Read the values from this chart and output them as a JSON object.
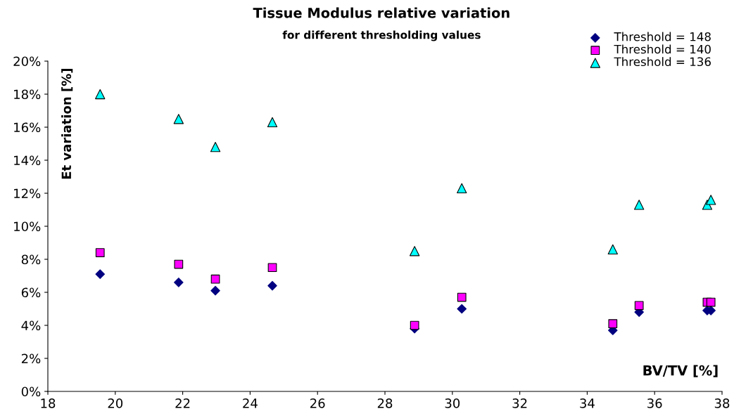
{
  "chart_data": {
    "type": "scatter",
    "title": "Tissue Modulus relative variation",
    "subtitle": "for different thresholding values",
    "xlabel": "BV/TV [%]",
    "ylabel": "Et variation [%]",
    "x": [
      19.55,
      21.88,
      22.97,
      24.66,
      28.88,
      30.28,
      34.76,
      35.54,
      37.56,
      37.67
    ],
    "series": [
      {
        "name": "Threshold = 148",
        "color": "#000080",
        "marker": "diamond",
        "values": [
          7.1,
          6.6,
          6.1,
          6.4,
          3.8,
          5.0,
          3.7,
          4.8,
          4.9,
          4.9
        ]
      },
      {
        "name": "Threshold = 140",
        "color": "#ff00ff",
        "marker": "square",
        "values": [
          8.4,
          7.7,
          6.8,
          7.5,
          4.0,
          5.7,
          4.1,
          5.2,
          5.4,
          5.4
        ]
      },
      {
        "name": "Threshold = 136",
        "color": "#00ffff",
        "marker": "triangle",
        "values": [
          18.0,
          16.5,
          14.8,
          16.3,
          8.5,
          12.3,
          8.6,
          11.3,
          11.3,
          11.6
        ]
      }
    ],
    "xlim": [
      18,
      38
    ],
    "xticks": [
      18,
      20,
      22,
      24,
      26,
      28,
      30,
      32,
      34,
      36,
      38
    ],
    "ylim": [
      0,
      20
    ],
    "yticks": [
      {
        "value": 0,
        "label": "0%"
      },
      {
        "value": 2,
        "label": "2%"
      },
      {
        "value": 4,
        "label": "4%"
      },
      {
        "value": 6,
        "label": "6%"
      },
      {
        "value": 8,
        "label": "8%"
      },
      {
        "value": 10,
        "label": "10%"
      },
      {
        "value": 12,
        "label": "12%"
      },
      {
        "value": 14,
        "label": "14%"
      },
      {
        "value": 16,
        "label": "16%"
      },
      {
        "value": 18,
        "label": "18%"
      },
      {
        "value": 20,
        "label": "20%"
      }
    ],
    "grid": false,
    "legend": "top right"
  }
}
